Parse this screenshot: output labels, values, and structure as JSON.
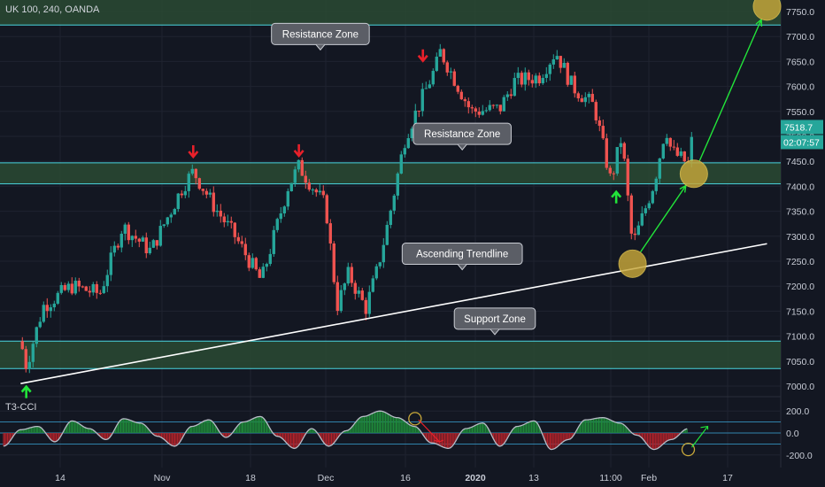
{
  "header": {
    "ticker": "UK 100, 240, OANDA"
  },
  "indicator": {
    "label": "T3-CCI",
    "ticks": [
      "200.0",
      "0.0",
      "-200.0"
    ]
  },
  "price_tags": {
    "last": "7518.7",
    "countdown": "02:07:57"
  },
  "colors": {
    "background": "#131722",
    "up_candle": "#26a69a",
    "down_candle": "#ef5350",
    "zone_fill": "#2a4a32",
    "zone_line": "#4ad6e0",
    "trendline": "#ffffff",
    "projection": "#22e53a",
    "circle": "#c8a83a",
    "arrow_down": "#e8202a",
    "arrow_up": "#22e53a"
  },
  "annotations": [
    {
      "text": "Resistance Zone",
      "price": 7705,
      "date": "2019-12-01"
    },
    {
      "text": "Resistance Zone",
      "price": 7505,
      "date": "2019-12-29"
    },
    {
      "text": "Ascending Trendline",
      "price": 7265,
      "date": "2019-12-29"
    },
    {
      "text": "Support Zone",
      "price": 7135,
      "date": "2020-01-05"
    }
  ],
  "chart_data": {
    "type": "candlestick",
    "symbol": "UK 100",
    "timeframe": "240",
    "source": "OANDA",
    "y_ticks": [
      7750,
      7700,
      7650,
      7600,
      7550,
      7500,
      7450,
      7400,
      7350,
      7300,
      7250,
      7200,
      7150,
      7100,
      7050,
      7000
    ],
    "y_tick_labels": [
      "7750.0",
      "7700.0",
      "7650.0",
      "7600.0",
      "7550.0",
      "7500.0",
      "7450.0",
      "7400.0",
      "7350.0",
      "7300.0",
      "7250.0",
      "7200.0",
      "7150.0",
      "7100.0",
      "7050.0",
      "7000.0"
    ],
    "x_tick_labels": [
      "14",
      "Nov",
      "18",
      "Dec",
      "16",
      "2020",
      "13",
      "11:00",
      "Feb",
      "17"
    ],
    "last_price": 7518.7,
    "zones": [
      {
        "name": "upper",
        "top": 7780,
        "bottom": 7723
      },
      {
        "name": "resistance",
        "top": 7447,
        "bottom": 7405
      },
      {
        "name": "support",
        "top": 7090,
        "bottom": 7035
      }
    ],
    "trendline": {
      "from": {
        "date": "2019-10-07",
        "price": 7005
      },
      "to": {
        "date": "2020-02-24",
        "price": 7285
      }
    },
    "swing_path": [
      {
        "date": "2019-10-07",
        "price": 7090
      },
      {
        "date": "2019-10-08",
        "price": 7040
      },
      {
        "date": "2019-10-11",
        "price": 7160
      },
      {
        "date": "2019-10-16",
        "price": 7200
      },
      {
        "date": "2019-10-21",
        "price": 7185
      },
      {
        "date": "2019-10-25",
        "price": 7320
      },
      {
        "date": "2019-10-30",
        "price": 7270
      },
      {
        "date": "2019-11-05",
        "price": 7400
      },
      {
        "date": "2019-11-07",
        "price": 7430
      },
      {
        "date": "2019-11-11",
        "price": 7360
      },
      {
        "date": "2019-11-15",
        "price": 7300
      },
      {
        "date": "2019-11-20",
        "price": 7210
      },
      {
        "date": "2019-11-25",
        "price": 7400
      },
      {
        "date": "2019-11-27",
        "price": 7440
      },
      {
        "date": "2019-12-02",
        "price": 7360
      },
      {
        "date": "2019-12-04",
        "price": 7160
      },
      {
        "date": "2019-12-06",
        "price": 7225
      },
      {
        "date": "2019-12-09",
        "price": 7155
      },
      {
        "date": "2019-12-11",
        "price": 7230
      },
      {
        "date": "2019-12-13",
        "price": 7330
      },
      {
        "date": "2019-12-16",
        "price": 7500
      },
      {
        "date": "2019-12-19",
        "price": 7560
      },
      {
        "date": "2019-12-23",
        "price": 7640
      },
      {
        "date": "2019-12-24",
        "price": 7670
      },
      {
        "date": "2019-12-31",
        "price": 7550
      },
      {
        "date": "2020-01-06",
        "price": 7555
      },
      {
        "date": "2020-01-09",
        "price": 7610
      },
      {
        "date": "2020-01-14",
        "price": 7620
      },
      {
        "date": "2020-01-17",
        "price": 7670
      },
      {
        "date": "2020-01-20",
        "price": 7600
      },
      {
        "date": "2020-01-24",
        "price": 7560
      },
      {
        "date": "2020-01-27",
        "price": 7410
      },
      {
        "date": "2020-01-29",
        "price": 7500
      },
      {
        "date": "2020-01-31",
        "price": 7280
      },
      {
        "date": "2020-02-04",
        "price": 7410
      },
      {
        "date": "2020-02-06",
        "price": 7520
      },
      {
        "date": "2020-02-07",
        "price": 7470
      },
      {
        "date": "2020-02-10",
        "price": 7445
      },
      {
        "date": "2020-02-11",
        "price": 7519
      }
    ],
    "markers": [
      {
        "type": "arrow-down",
        "date": "2019-11-07",
        "price": 7468
      },
      {
        "type": "arrow-down",
        "date": "2019-11-27",
        "price": 7470
      },
      {
        "type": "arrow-down",
        "date": "2019-12-20",
        "price": 7660
      },
      {
        "type": "arrow-up",
        "date": "2019-10-08",
        "price": 6990
      },
      {
        "type": "arrow-up",
        "date": "2020-01-28",
        "price": 7380
      }
    ],
    "highlight_points": [
      {
        "date": "2020-01-31",
        "price": 7245
      },
      {
        "date": "2020-02-11",
        "price": 7425
      },
      {
        "date": "2020-02-24",
        "price": 7760
      }
    ],
    "projection_path": [
      {
        "date": "2020-01-31",
        "price": 7245
      },
      {
        "date": "2020-02-11",
        "price": 7425
      },
      {
        "date": "2020-02-24",
        "price": 7760
      }
    ],
    "indicator_series": {
      "name": "T3-CCI",
      "y_range": [
        -250,
        250
      ],
      "levels": [
        100,
        0,
        -100
      ],
      "values": [
        -120,
        30,
        60,
        -80,
        110,
        40,
        -60,
        130,
        90,
        -30,
        -120,
        60,
        120,
        -40,
        100,
        150,
        -30,
        -140,
        40,
        -120,
        20,
        150,
        200,
        140,
        60,
        -90,
        -140,
        40,
        90,
        -120,
        60,
        110,
        -150,
        -60,
        120,
        140,
        90,
        -20,
        -150,
        -60,
        40
      ]
    }
  }
}
